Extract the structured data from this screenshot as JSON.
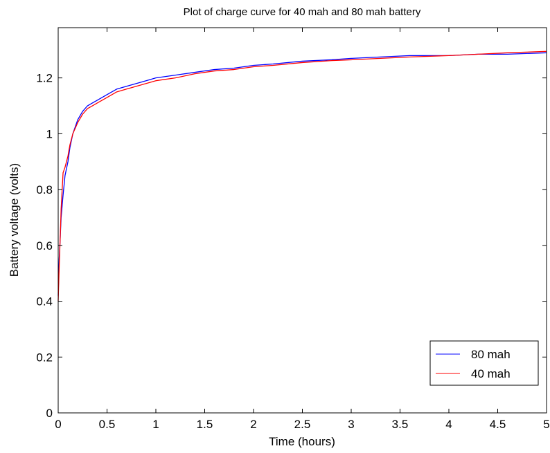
{
  "chart_data": {
    "type": "line",
    "title": "Plot of charge curve for 40 mah and 80 mah battery",
    "xlabel": "Time (hours)",
    "ylabel": "Battery voltage (volts)",
    "xlim": [
      0,
      5
    ],
    "ylim": [
      0,
      1.38
    ],
    "x_ticks": [
      0,
      0.5,
      1,
      1.5,
      2,
      2.5,
      3,
      3.5,
      4,
      4.5,
      5
    ],
    "x_tick_labels": [
      "0",
      "0.5",
      "1",
      "1.5",
      "2",
      "2.5",
      "3",
      "3.5",
      "4",
      "4.5",
      "5"
    ],
    "y_ticks": [
      0,
      0.2,
      0.4,
      0.6,
      0.8,
      1.0,
      1.2
    ],
    "y_tick_labels": [
      "0",
      "0.2",
      "0.4",
      "0.6",
      "0.8",
      "1",
      "1.2"
    ],
    "grid": false,
    "legend_position": "bottom-right",
    "series": [
      {
        "name": "80 mah",
        "color": "#0000ff",
        "x": [
          0,
          0.01,
          0.02,
          0.03,
          0.05,
          0.07,
          0.1,
          0.12,
          0.15,
          0.2,
          0.25,
          0.3,
          0.35,
          0.4,
          0.5,
          0.6,
          0.7,
          0.8,
          0.9,
          1.0,
          1.2,
          1.4,
          1.6,
          1.8,
          2.0,
          2.2,
          2.5,
          2.8,
          3.0,
          3.3,
          3.6,
          4.0,
          4.3,
          4.6,
          5.0
        ],
        "y": [
          0.42,
          0.55,
          0.62,
          0.7,
          0.78,
          0.85,
          0.9,
          0.95,
          1.0,
          1.05,
          1.08,
          1.1,
          1.11,
          1.12,
          1.14,
          1.16,
          1.17,
          1.18,
          1.19,
          1.2,
          1.21,
          1.22,
          1.23,
          1.235,
          1.245,
          1.25,
          1.26,
          1.265,
          1.27,
          1.275,
          1.28,
          1.28,
          1.285,
          1.285,
          1.29
        ]
      },
      {
        "name": "40 mah",
        "color": "#ff0000",
        "x": [
          0,
          0.01,
          0.02,
          0.03,
          0.05,
          0.07,
          0.1,
          0.12,
          0.15,
          0.2,
          0.25,
          0.3,
          0.35,
          0.4,
          0.5,
          0.6,
          0.7,
          0.8,
          0.9,
          1.0,
          1.2,
          1.4,
          1.6,
          1.8,
          2.0,
          2.2,
          2.5,
          2.8,
          3.0,
          3.3,
          3.6,
          4.0,
          4.3,
          4.6,
          5.0
        ],
        "y": [
          0.4,
          0.52,
          0.62,
          0.73,
          0.86,
          0.88,
          0.92,
          0.96,
          1.0,
          1.04,
          1.07,
          1.09,
          1.1,
          1.11,
          1.13,
          1.15,
          1.16,
          1.17,
          1.18,
          1.19,
          1.2,
          1.215,
          1.225,
          1.23,
          1.24,
          1.245,
          1.255,
          1.262,
          1.265,
          1.27,
          1.275,
          1.28,
          1.285,
          1.29,
          1.295
        ]
      }
    ]
  }
}
